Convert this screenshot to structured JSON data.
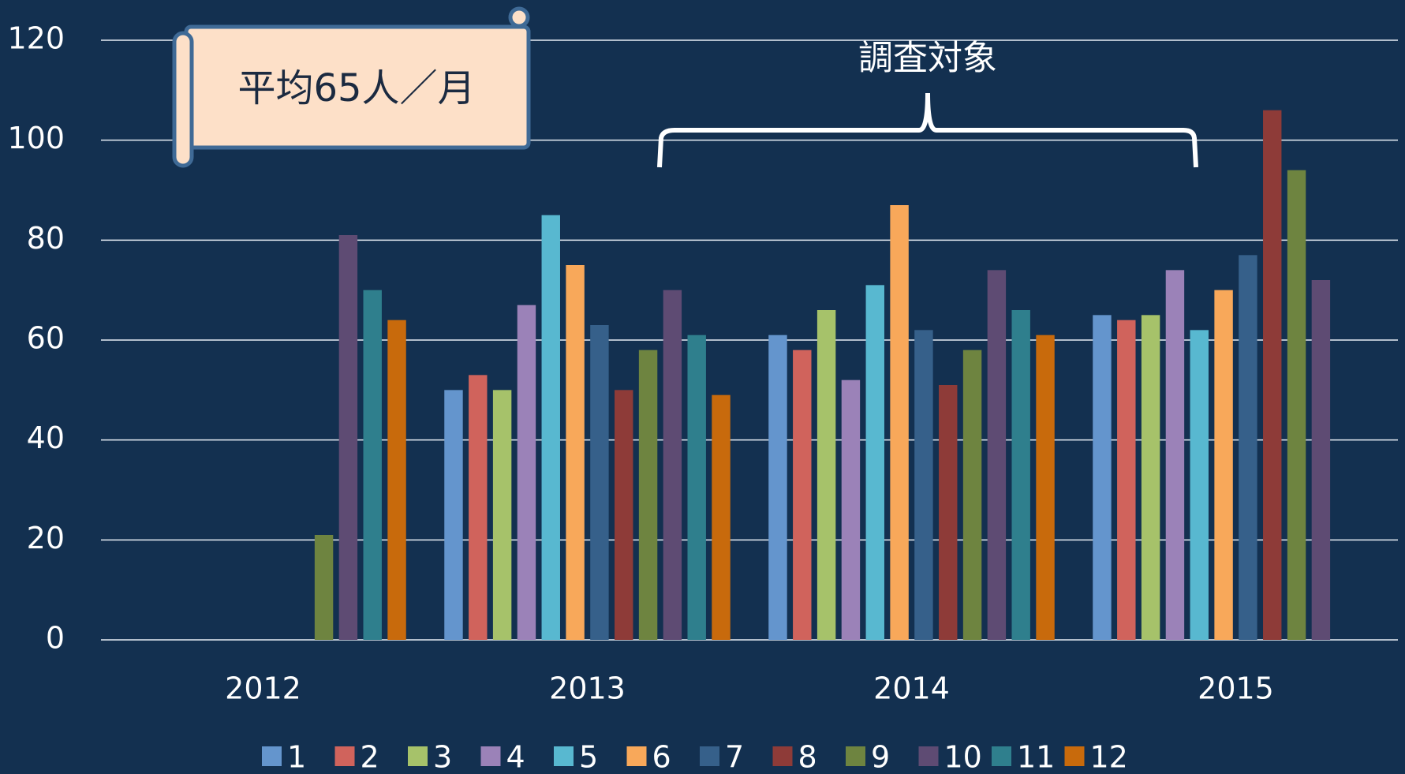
{
  "chart_data": {
    "type": "bar",
    "categories": [
      "2012",
      "2013",
      "2014",
      "2015"
    ],
    "series": [
      {
        "name": "1",
        "color": "#6495cd",
        "values": [
          null,
          50,
          61,
          65
        ]
      },
      {
        "name": "2",
        "color": "#d0635c",
        "values": [
          null,
          53,
          58,
          64
        ]
      },
      {
        "name": "3",
        "color": "#a6c26a",
        "values": [
          null,
          50,
          66,
          65
        ]
      },
      {
        "name": "4",
        "color": "#9b82b8",
        "values": [
          null,
          67,
          52,
          74
        ]
      },
      {
        "name": "5",
        "color": "#58b8d0",
        "values": [
          null,
          85,
          71,
          62
        ]
      },
      {
        "name": "6",
        "color": "#f8a85a",
        "values": [
          null,
          75,
          87,
          70
        ]
      },
      {
        "name": "7",
        "color": "#36608a",
        "values": [
          null,
          63,
          62,
          77
        ]
      },
      {
        "name": "8",
        "color": "#8e3b38",
        "values": [
          null,
          50,
          51,
          106
        ]
      },
      {
        "name": "9",
        "color": "#6e8440",
        "values": [
          21,
          58,
          58,
          94
        ]
      },
      {
        "name": "10",
        "color": "#5e4b73",
        "values": [
          81,
          70,
          74,
          72
        ]
      },
      {
        "name": "11",
        "color": "#2f7f8d",
        "values": [
          70,
          61,
          66,
          null
        ]
      },
      {
        "name": "12",
        "color": "#c86a0c",
        "values": [
          64,
          49,
          61,
          null
        ]
      }
    ],
    "ylim": [
      0,
      120
    ],
    "yticks": [
      0,
      20,
      40,
      60,
      80,
      100,
      120
    ],
    "grid": true,
    "legend": "bottom",
    "annotations": [
      "平均65人／月",
      "調査対象"
    ]
  }
}
